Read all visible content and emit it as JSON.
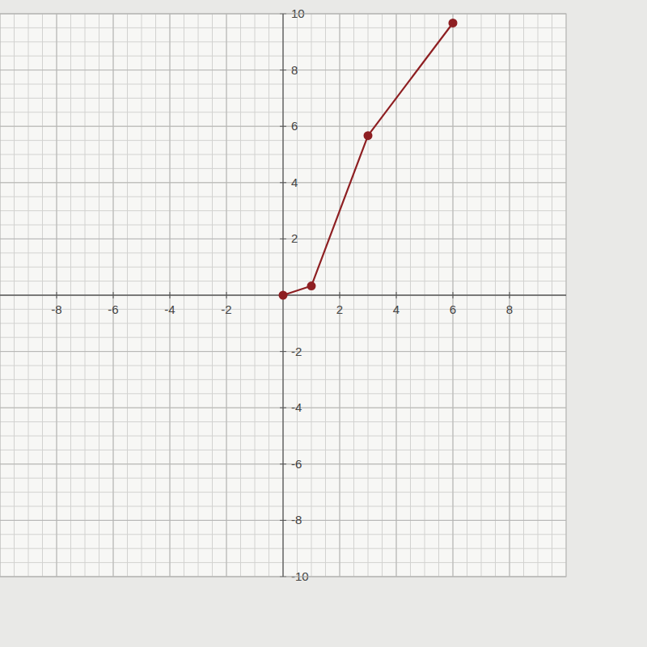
{
  "chart_data": {
    "type": "line",
    "x": [
      0,
      1,
      3,
      6
    ],
    "values": [
      0,
      0.33,
      5.67,
      9.67
    ],
    "color": "#8e1f22",
    "marker": "circle",
    "xlim": [
      -10,
      10
    ],
    "ylim": [
      -10,
      10
    ],
    "xticks": [
      -8,
      -6,
      -4,
      -2,
      2,
      4,
      6,
      8
    ],
    "yticks": [
      -10,
      -8,
      -6,
      -4,
      -2,
      2,
      4,
      6,
      8,
      10
    ],
    "grid": true
  }
}
